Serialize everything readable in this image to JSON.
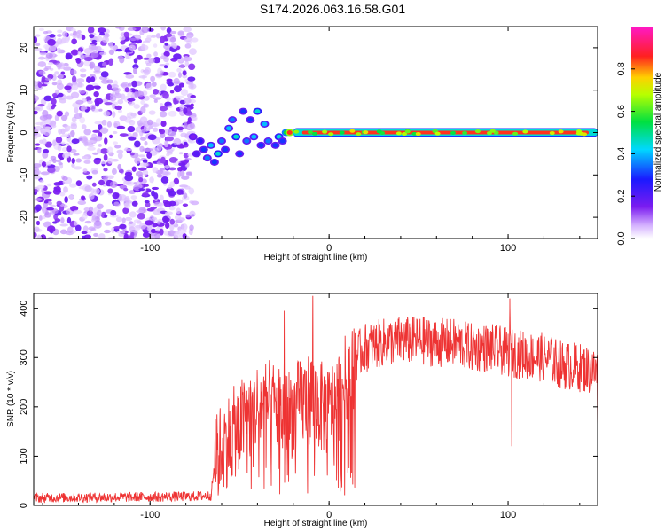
{
  "title": "S174.2026.063.16.58.G01",
  "chart_data": [
    {
      "type": "heatmap",
      "name": "spectrogram",
      "xlabel": "Height of straight line (km)",
      "ylabel": "Frequency (Hz)",
      "xlim": [
        -165,
        150
      ],
      "ylim": [
        -25,
        25
      ],
      "xticks": [
        -100,
        0,
        100
      ],
      "xtick_labels": [
        "-100",
        "0",
        "100"
      ],
      "yticks": [
        -20,
        -10,
        0,
        10,
        20
      ],
      "ytick_labels": [
        "-20",
        "-10",
        "0",
        "10",
        "20"
      ],
      "colorbar": {
        "label": "Normalized spectral amplitude",
        "range": [
          0.0,
          1.0
        ],
        "ticks": [
          0.0,
          0.2,
          0.4,
          0.6,
          0.8
        ],
        "tick_labels": [
          "0.0",
          "0.2",
          "0.4",
          "0.6",
          "0.8"
        ],
        "colormap": "rainbow (purple-blue-cyan-green-yellow-red-magenta)"
      },
      "features": [
        {
          "region": "noise",
          "x_range": [
            -165,
            -75
          ],
          "freq_range": [
            -25,
            25
          ],
          "amplitude": 0.1
        },
        {
          "region": "transition",
          "x_range": [
            -75,
            -20
          ],
          "freq_range": [
            -8,
            7
          ],
          "amplitude": 0.4
        },
        {
          "region": "carrier",
          "x_range": [
            -20,
            150
          ],
          "freq": 0,
          "amplitude": 0.85
        }
      ]
    },
    {
      "type": "line",
      "name": "snr",
      "xlabel": "Height of straight line (km)",
      "ylabel": "SNR (10 * v/v)",
      "xlim": [
        -165,
        150
      ],
      "ylim": [
        0,
        430
      ],
      "xticks": [
        -100,
        0,
        100
      ],
      "xtick_labels": [
        "-100",
        "0",
        "100"
      ],
      "yticks": [
        0,
        100,
        200,
        300,
        400
      ],
      "ytick_labels": [
        "0",
        "100",
        "200",
        "300",
        "400"
      ],
      "color": "#ee3333",
      "series": [
        {
          "name": "SNR",
          "x": [
            -165,
            -140,
            -100,
            -80,
            -66,
            -64,
            -60,
            -50,
            -40,
            -30,
            -25,
            -20,
            -15,
            -10,
            -5,
            0,
            5,
            10,
            15,
            20,
            30,
            40,
            50,
            60,
            70,
            80,
            90,
            100,
            110,
            120,
            130,
            140,
            150
          ],
          "y": [
            15,
            16,
            17,
            18,
            20,
            80,
            120,
            160,
            200,
            200,
            180,
            190,
            210,
            220,
            200,
            190,
            220,
            260,
            300,
            320,
            330,
            335,
            335,
            330,
            330,
            320,
            320,
            310,
            305,
            300,
            285,
            280,
            270
          ],
          "spikes": [
            {
              "x": -25,
              "y": 395
            },
            {
              "x": -9,
              "y": 425
            },
            {
              "x": 101,
              "y": 420
            },
            {
              "x": 102,
              "y": 120
            },
            {
              "x": 150,
              "y": 130
            }
          ]
        }
      ]
    }
  ]
}
